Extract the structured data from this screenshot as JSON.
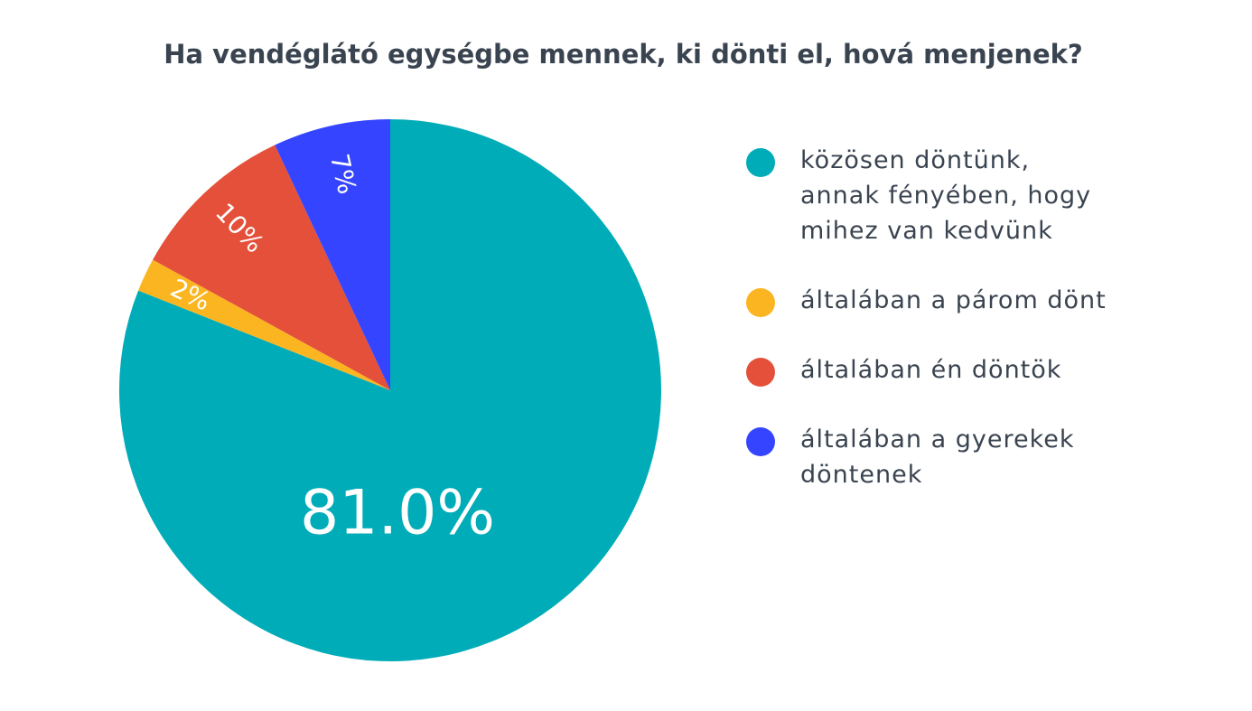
{
  "chart_data": {
    "type": "pie",
    "title": "Ha vendéglátó egységbe mennek, ki dönti el, hová menjenek?",
    "categories": [
      "közösen döntünk, annak fényében, hogy mihez van kedvünk",
      "általában a párom dönt",
      "általában én döntök",
      "általában a gyerekek döntenek"
    ],
    "values": [
      81,
      2,
      10,
      7
    ],
    "value_labels": [
      "81.0%",
      "2%",
      "10%",
      "7%"
    ],
    "colors": [
      "#00acb8",
      "#fbb521",
      "#e4503a",
      "#3545ff"
    ],
    "legend": "right"
  }
}
